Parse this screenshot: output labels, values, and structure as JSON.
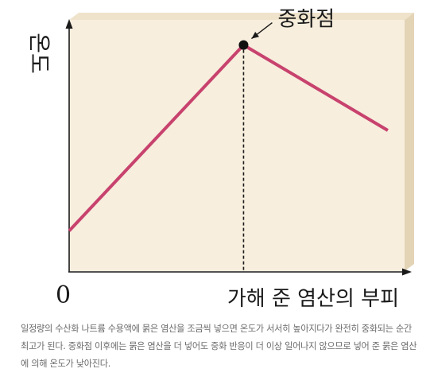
{
  "chart_data": {
    "type": "line",
    "ylabel": "온도",
    "xlabel": "가해 준 염산의 부피",
    "origin_label": "0",
    "xlim": [
      0,
      100
    ],
    "ylim": [
      0,
      100
    ],
    "series": [
      {
        "points": [
          [
            0,
            16
          ],
          [
            52,
            90
          ],
          [
            95,
            56
          ]
        ],
        "color": "#c8426e"
      }
    ],
    "annotation": {
      "label": "중화점",
      "point": [
        52,
        90
      ]
    }
  },
  "caption": "일정량의 수산화 나트륨 수용액에 묽은 염산을 조금씩 넣으면 온도가 서서히 높아지다가 완전히 중화되는 순간 최고가 된다. 중화점 이후에는 묽은 염산을 더 넣어도 중화 반응이 더 이상 일어나지 않으므로 넣어 준 묽은 염산에 의해 온도가 낮아진다.",
  "colors": {
    "panel": "#f7eedd",
    "panel_side": "#e6d8bd",
    "axis": "#1a1a1a",
    "line": "#c8426e"
  }
}
